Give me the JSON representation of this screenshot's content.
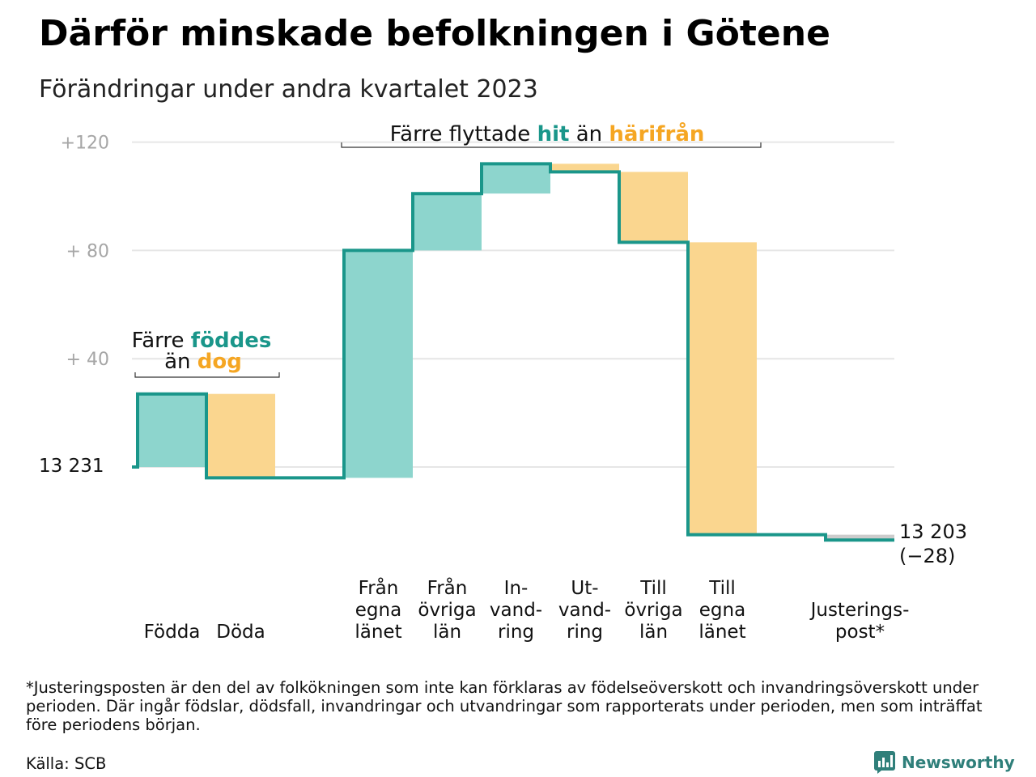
{
  "title": "Därför minskade befolkningen i Götene",
  "subtitle": "Förändringar under andra kvartalet 2023",
  "annotations": {
    "birth_death": {
      "line1_pre": "Färre ",
      "line1_teal": "föddes",
      "line2_pre": "än ",
      "line2_orange": "dog"
    },
    "migration": {
      "pre": "Färre flyttade ",
      "teal": "hit",
      "mid": " än ",
      "orange": "härifrån"
    }
  },
  "footnote": "*Justeringsposten är den del av folkökningen som inte kan förklaras av födelseöverskott och invandringsöverskott under perioden. Där ingår födslar, dödsfall, invandringar och utvandringar som rapporterats under perioden, men som inträffat före periodens början.",
  "source": "Källa: SCB",
  "brand": {
    "name": "Newsworthy",
    "icon": "bar-chart-logo-icon"
  },
  "colors": {
    "teal_line": "#1a968a",
    "teal_fill": "#8dd5cd",
    "orange_fill": "#fad68f",
    "adjust_fill": "#cccccc",
    "grid": "#e6e6e6"
  },
  "chart_data": {
    "type": "waterfall",
    "start_value": 13231,
    "start_label": "13  231",
    "end_value": 13203,
    "end_label": "13 203",
    "change_label": "(−28)",
    "y_ticks": [
      {
        "value": 40,
        "label": "+  40"
      },
      {
        "value": 80,
        "label": "+  80"
      },
      {
        "value": 120,
        "label": "+120"
      }
    ],
    "ylim": [
      -30,
      121
    ],
    "steps": [
      {
        "name": "Födda",
        "label_lines": [
          "Födda"
        ],
        "value": 27,
        "kind": "in"
      },
      {
        "name": "Döda",
        "label_lines": [
          "Döda"
        ],
        "value": -31,
        "kind": "out"
      },
      {
        "name": "gap",
        "label_lines": [],
        "value": 0,
        "kind": "gap"
      },
      {
        "name": "Från egna länet",
        "label_lines": [
          "Från",
          "egna",
          "länet"
        ],
        "value": 84,
        "kind": "in"
      },
      {
        "name": "Från övriga län",
        "label_lines": [
          "Från",
          "övriga",
          "län"
        ],
        "value": 21,
        "kind": "in"
      },
      {
        "name": "Invandring",
        "label_lines": [
          "In-",
          "vand-",
          "ring"
        ],
        "value": 11,
        "kind": "in"
      },
      {
        "name": "Utvandring",
        "label_lines": [
          "Ut-",
          "vand-",
          "ring"
        ],
        "value": -3,
        "kind": "out"
      },
      {
        "name": "Till övriga län",
        "label_lines": [
          "Till",
          "övriga",
          "län"
        ],
        "value": -26,
        "kind": "out"
      },
      {
        "name": "Till egna länet",
        "label_lines": [
          "Till",
          "egna",
          "länet"
        ],
        "value": -108,
        "kind": "out"
      },
      {
        "name": "gap",
        "label_lines": [],
        "value": 0,
        "kind": "gap"
      },
      {
        "name": "Justeringspost*",
        "label_lines": [
          "Justerings-",
          "post*"
        ],
        "value": -2,
        "kind": "adjust"
      }
    ]
  }
}
